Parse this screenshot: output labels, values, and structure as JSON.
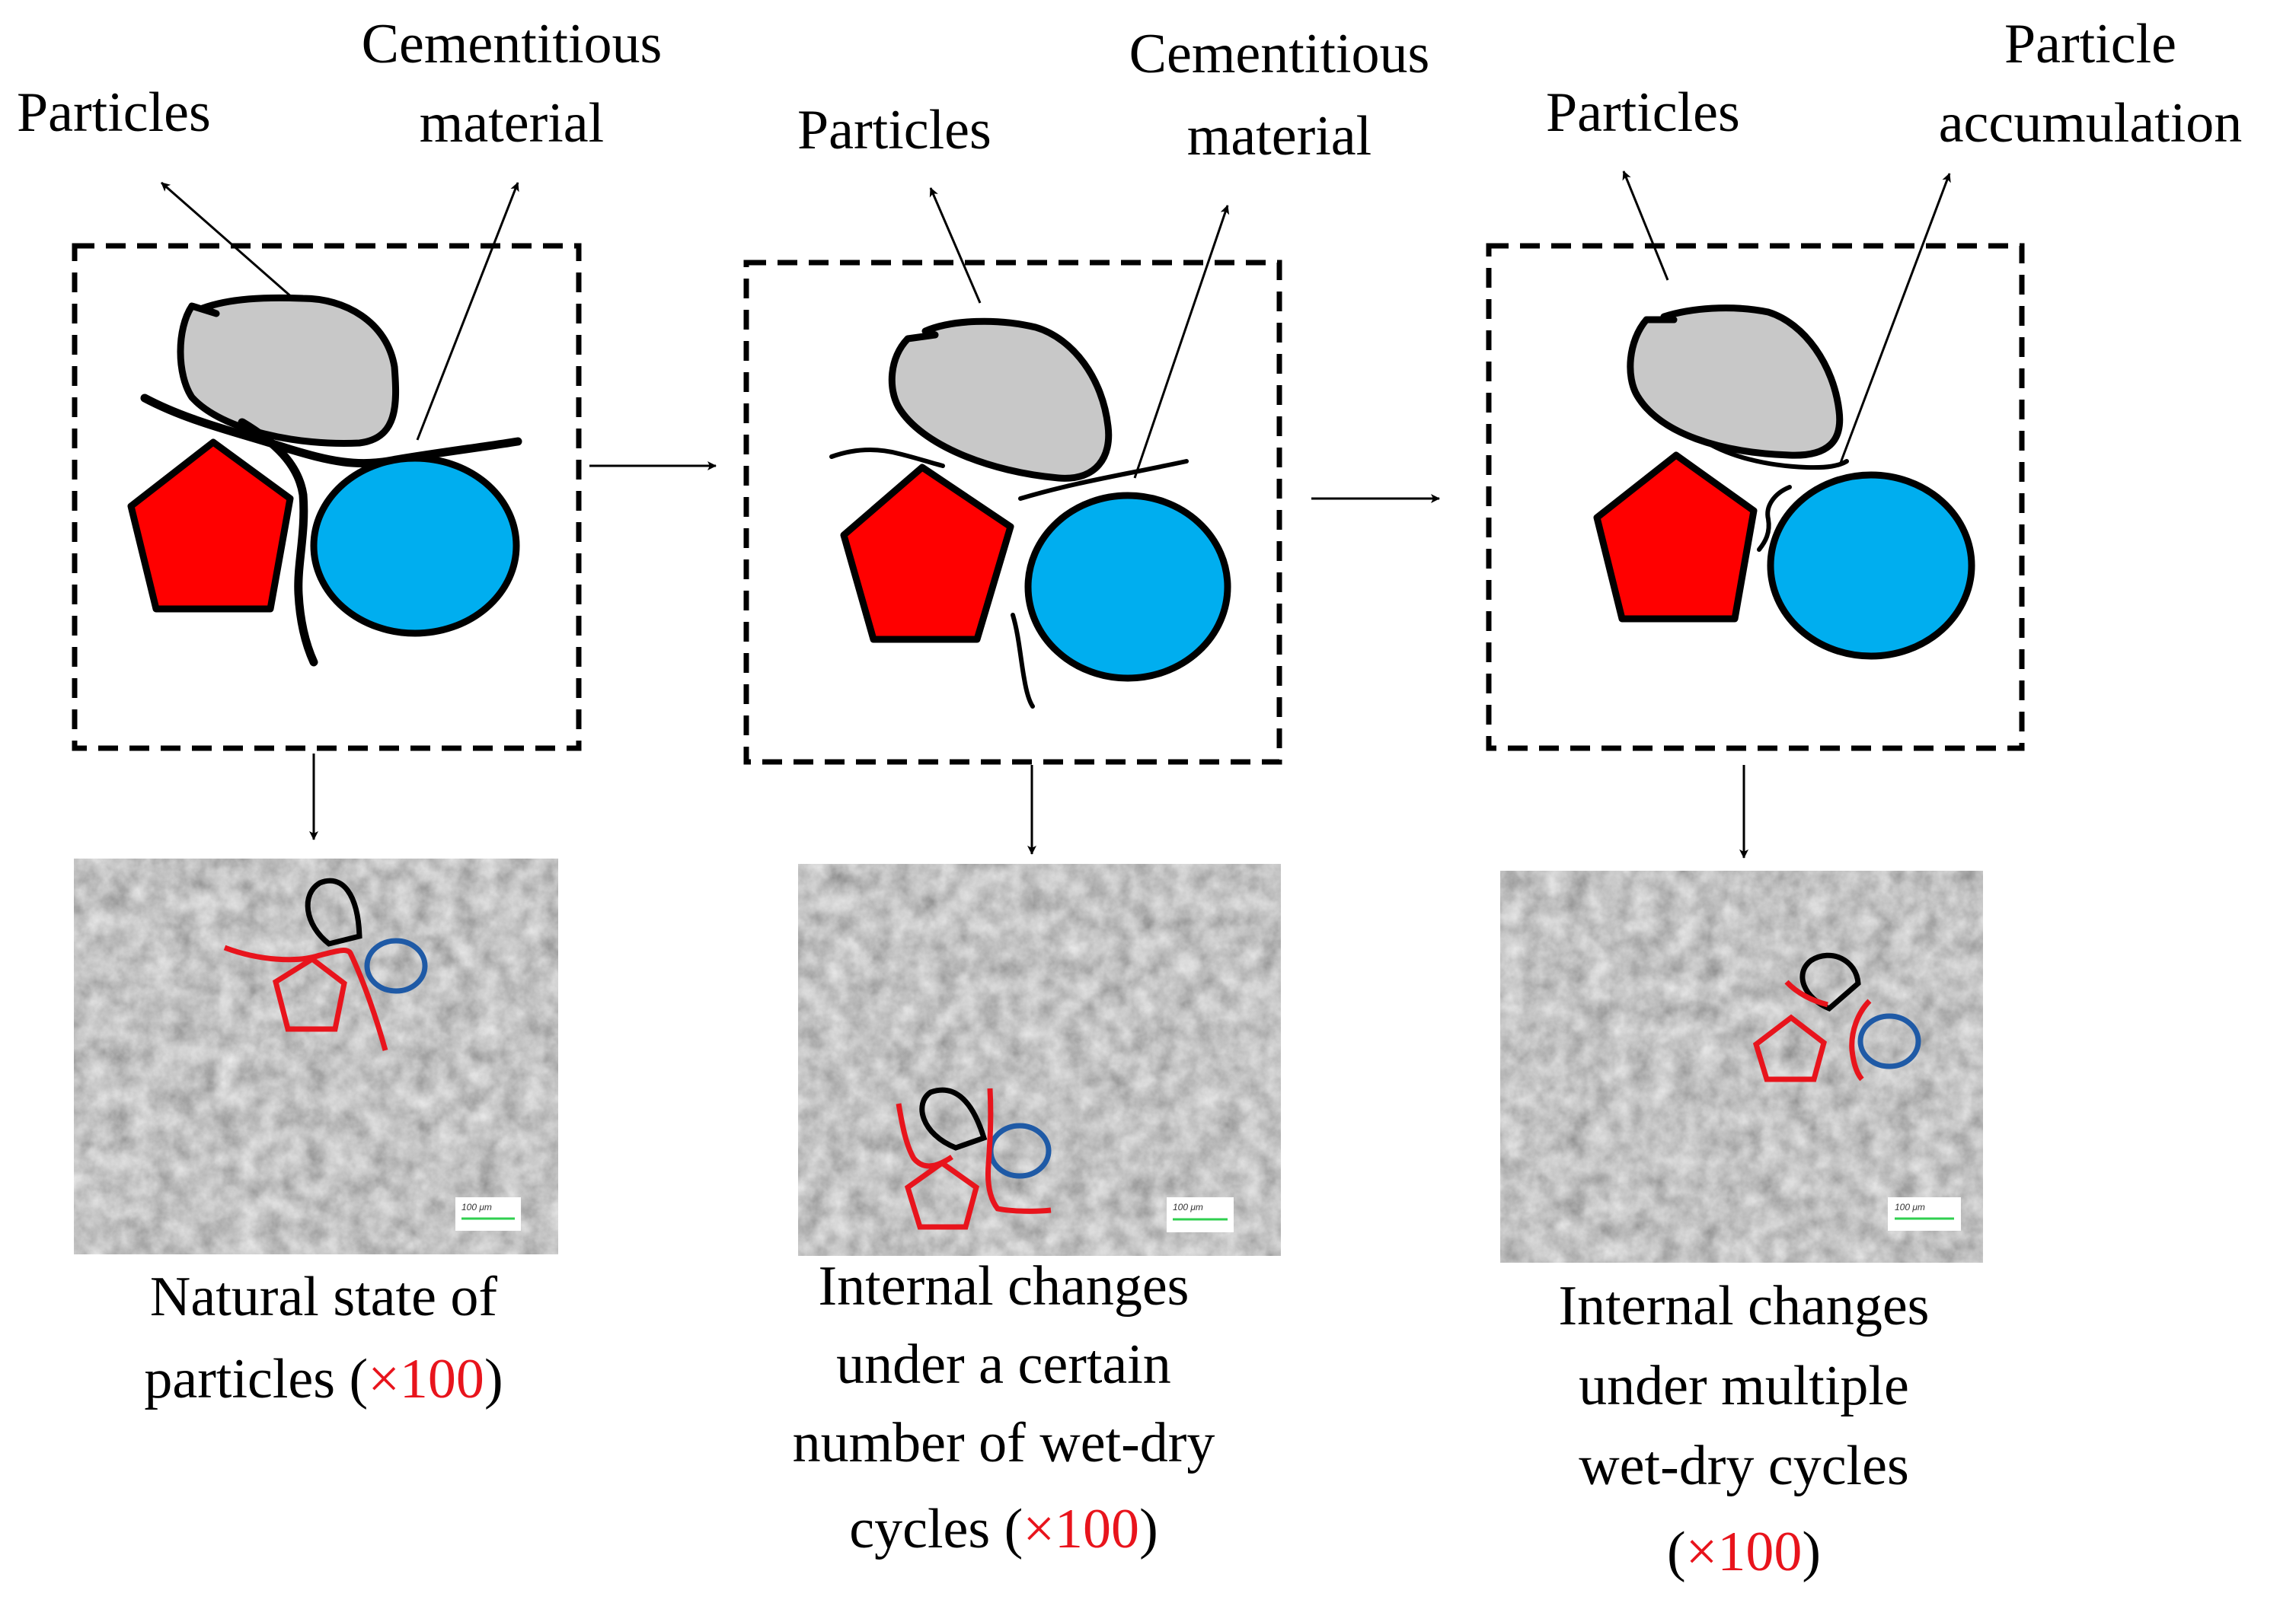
{
  "colors": {
    "particle_gray": "#c8c8c8",
    "pentagon_red": "#ff0000",
    "circle_blue": "#00aeef",
    "annot_red": "#e8141c",
    "annot_blue": "#1f5aa6",
    "annot_black": "#000000",
    "scale_green": "#2fcf4f",
    "sem_base": "#7a7a7a"
  },
  "panels": [
    {
      "label_left": "Particles",
      "label_right_line1": "Cementitious",
      "label_right_line2": "material",
      "caption_lines": [
        "Natural state of",
        "particles ("
      ],
      "caption_mag": "×100",
      "caption_close": ")",
      "scale_label": "100 μm"
    },
    {
      "label_left": "Particles",
      "label_right_line1": "Cementitious",
      "label_right_line2": "material",
      "caption_lines": [
        "Internal changes",
        "under a certain",
        "number of wet-dry",
        "cycles ("
      ],
      "caption_mag": "×100",
      "caption_close": ")",
      "scale_label": "100 μm"
    },
    {
      "label_left": "Particles",
      "label_right_line1": "Particle",
      "label_right_line2": "accumulation",
      "caption_lines": [
        "Internal changes",
        "under multiple",
        "wet-dry cycles",
        "("
      ],
      "caption_mag": "×100",
      "caption_close": ")",
      "scale_label": "100 μm"
    }
  ]
}
